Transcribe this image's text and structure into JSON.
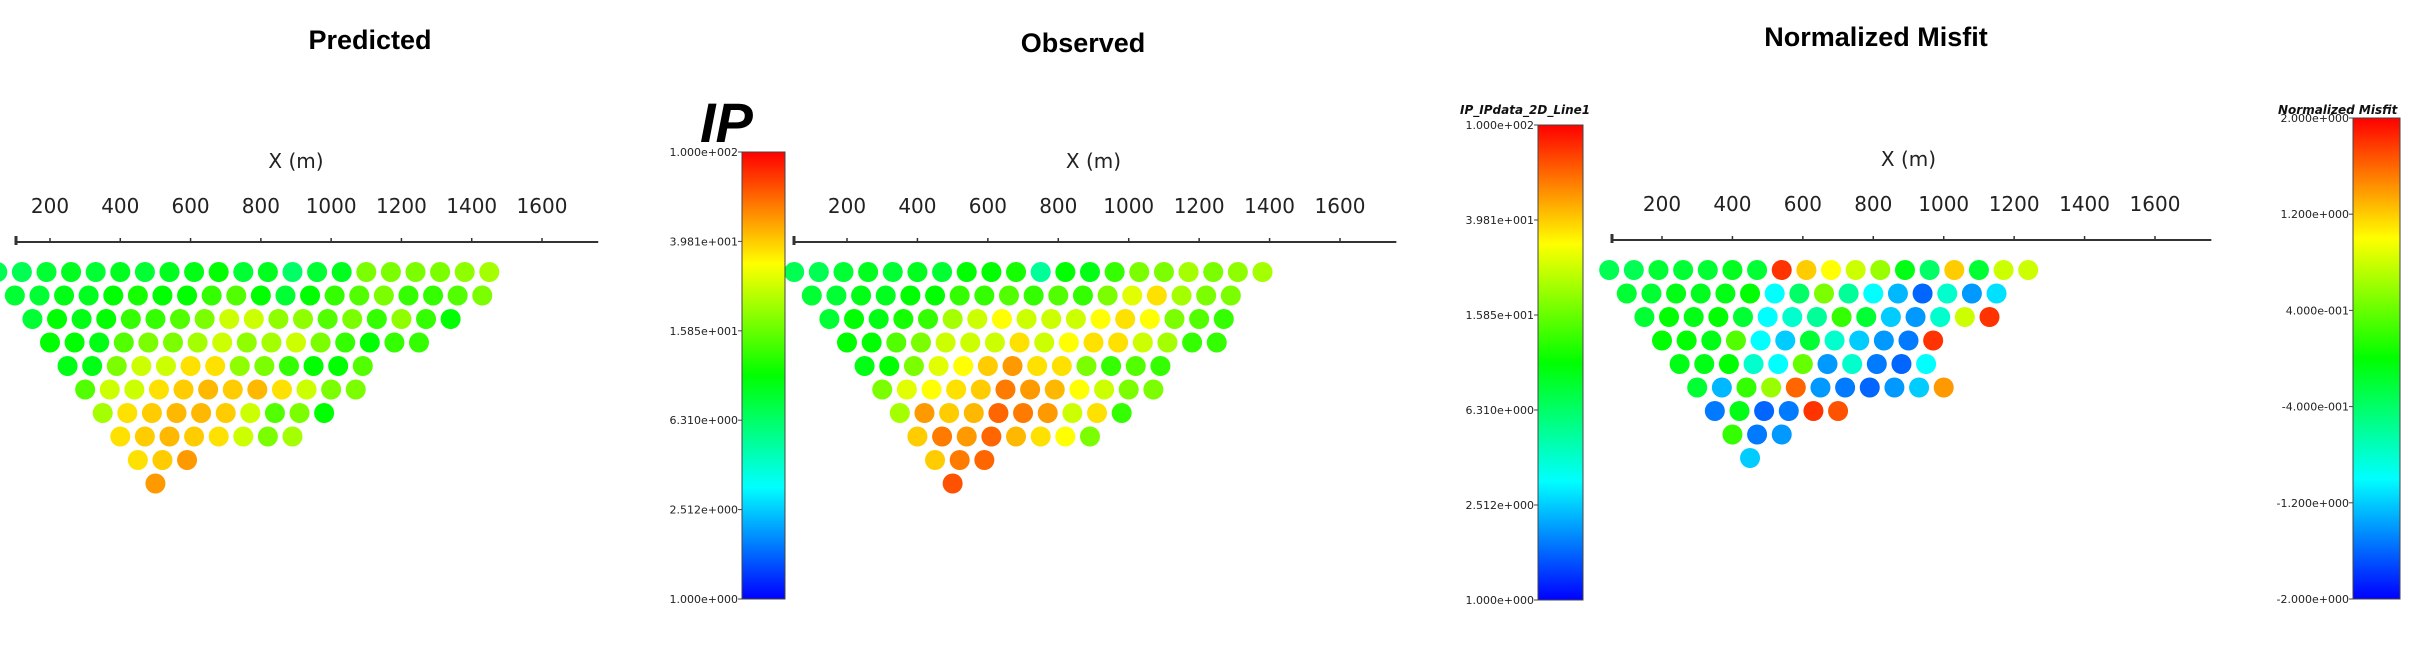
{
  "figure": {
    "ip_label": "IP"
  },
  "colormaps": [
    {
      "title": "",
      "ticks": [
        "1.000e+002",
        "3.981e+001",
        "1.585e+001",
        "6.310e+000",
        "2.512e+000",
        "1.000e+000"
      ]
    },
    {
      "title": "IP_IPdata_2D_Line1",
      "ticks": [
        "1.000e+002",
        "3.981e+001",
        "1.585e+001",
        "6.310e+000",
        "2.512e+000",
        "1.000e+000"
      ]
    },
    {
      "title": "Normalized Misfit",
      "ticks": [
        "2.000e+000",
        "1.200e+000",
        "4.000e-001",
        "-4.000e-001",
        "-1.200e+000",
        "-2.000e+000"
      ]
    }
  ],
  "chart_data": [
    {
      "type": "scatter",
      "title": "Predicted",
      "xlabel": "X (m)",
      "xticks": [
        200,
        400,
        600,
        800,
        1000,
        1200,
        1400,
        1600
      ],
      "colorbar": 0,
      "rows": [
        {
          "x0": 50,
          "v": [
            0.42,
            0.42,
            0.45,
            0.47,
            0.45,
            0.47,
            0.45,
            0.47,
            0.48,
            0.5,
            0.45,
            0.47,
            0.4,
            0.45,
            0.47,
            0.62,
            0.62,
            0.62,
            0.62,
            0.64,
            0.66
          ]
        },
        {
          "x0": 100,
          "v": [
            0.45,
            0.45,
            0.48,
            0.47,
            0.5,
            0.52,
            0.5,
            0.5,
            0.55,
            0.58,
            0.5,
            0.45,
            0.5,
            0.55,
            0.58,
            0.62,
            0.55,
            0.55,
            0.58,
            0.62
          ]
        },
        {
          "x0": 150,
          "v": [
            0.45,
            0.5,
            0.48,
            0.5,
            0.55,
            0.55,
            0.58,
            0.62,
            0.7,
            0.7,
            0.64,
            0.64,
            0.58,
            0.62,
            0.55,
            0.64,
            0.55,
            0.5
          ]
        },
        {
          "x0": 200,
          "v": [
            0.5,
            0.5,
            0.48,
            0.58,
            0.62,
            0.62,
            0.66,
            0.7,
            0.64,
            0.66,
            0.7,
            0.62,
            0.55,
            0.5,
            0.55,
            0.55
          ]
        },
        {
          "x0": 250,
          "v": [
            0.48,
            0.48,
            0.62,
            0.7,
            0.7,
            0.78,
            0.78,
            0.64,
            0.62,
            0.55,
            0.5,
            0.5,
            0.58
          ]
        },
        {
          "x0": 300,
          "v": [
            0.58,
            0.7,
            0.7,
            0.78,
            0.8,
            0.82,
            0.8,
            0.82,
            0.78,
            0.7,
            0.62,
            0.62
          ]
        },
        {
          "x0": 350,
          "v": [
            0.66,
            0.78,
            0.8,
            0.82,
            0.82,
            0.8,
            0.7,
            0.58,
            0.62,
            0.5
          ]
        },
        {
          "x0": 400,
          "v": [
            0.78,
            0.8,
            0.82,
            0.8,
            0.78,
            0.7,
            0.62,
            0.66
          ]
        },
        {
          "x0": 450,
          "v": [
            0.78,
            0.8,
            0.85
          ]
        },
        {
          "x0": 500,
          "v": [
            0.85
          ]
        }
      ]
    },
    {
      "type": "scatter",
      "title": "Observed",
      "xlabel": "X (m)",
      "xticks": [
        200,
        400,
        600,
        800,
        1000,
        1200,
        1400,
        1600
      ],
      "colorbar": 1,
      "rows": [
        {
          "x0": 50,
          "v": [
            0.42,
            0.42,
            0.45,
            0.47,
            0.45,
            0.47,
            0.45,
            0.5,
            0.5,
            0.52,
            0.35,
            0.5,
            0.48,
            0.55,
            0.62,
            0.62,
            0.66,
            0.62,
            0.64,
            0.66
          ]
        },
        {
          "x0": 100,
          "v": [
            0.45,
            0.45,
            0.48,
            0.47,
            0.5,
            0.5,
            0.55,
            0.55,
            0.58,
            0.55,
            0.58,
            0.55,
            0.62,
            0.72,
            0.78,
            0.66,
            0.62,
            0.62
          ]
        },
        {
          "x0": 150,
          "v": [
            0.45,
            0.5,
            0.48,
            0.52,
            0.55,
            0.66,
            0.7,
            0.75,
            0.7,
            0.7,
            0.7,
            0.75,
            0.78,
            0.75,
            0.62,
            0.58,
            0.55
          ]
        },
        {
          "x0": 200,
          "v": [
            0.5,
            0.5,
            0.58,
            0.62,
            0.7,
            0.7,
            0.7,
            0.78,
            0.7,
            0.75,
            0.78,
            0.78,
            0.7,
            0.66,
            0.55,
            0.55
          ]
        },
        {
          "x0": 250,
          "v": [
            0.48,
            0.5,
            0.62,
            0.72,
            0.75,
            0.8,
            0.85,
            0.78,
            0.78,
            0.62,
            0.55,
            0.58,
            0.55
          ]
        },
        {
          "x0": 300,
          "v": [
            0.62,
            0.72,
            0.75,
            0.78,
            0.8,
            0.88,
            0.85,
            0.82,
            0.75,
            0.7,
            0.62,
            0.62
          ]
        },
        {
          "x0": 350,
          "v": [
            0.66,
            0.85,
            0.8,
            0.82,
            0.9,
            0.88,
            0.85,
            0.7,
            0.78,
            0.55
          ]
        },
        {
          "x0": 400,
          "v": [
            0.8,
            0.88,
            0.85,
            0.9,
            0.82,
            0.78,
            0.75,
            0.62
          ]
        },
        {
          "x0": 450,
          "v": [
            0.8,
            0.88,
            0.9
          ]
        },
        {
          "x0": 500,
          "v": [
            0.92
          ]
        }
      ]
    },
    {
      "type": "scatter",
      "title": "Normalized Misfit",
      "xlabel": "X (m)",
      "xticks": [
        200,
        400,
        600,
        800,
        1000,
        1200,
        1400,
        1600
      ],
      "colorbar": 2,
      "rows": [
        {
          "x0": 50,
          "v": [
            0.42,
            0.42,
            0.45,
            0.45,
            0.45,
            0.47,
            0.45,
            0.95,
            0.8,
            0.75,
            0.7,
            0.65,
            0.48,
            0.4,
            0.8,
            0.45,
            0.7,
            0.7
          ]
        },
        {
          "x0": 100,
          "v": [
            0.45,
            0.45,
            0.48,
            0.47,
            0.48,
            0.5,
            0.25,
            0.4,
            0.62,
            0.35,
            0.25,
            0.18,
            0.1,
            0.3,
            0.15,
            0.22
          ]
        },
        {
          "x0": 150,
          "v": [
            0.45,
            0.5,
            0.48,
            0.5,
            0.45,
            0.25,
            0.3,
            0.35,
            0.55,
            0.45,
            0.2,
            0.15,
            0.3,
            0.7,
            0.95
          ]
        },
        {
          "x0": 200,
          "v": [
            0.5,
            0.5,
            0.48,
            0.58,
            0.25,
            0.2,
            0.45,
            0.3,
            0.2,
            0.15,
            0.12,
            0.95
          ]
        },
        {
          "x0": 250,
          "v": [
            0.48,
            0.48,
            0.5,
            0.3,
            0.25,
            0.6,
            0.15,
            0.3,
            0.12,
            0.1,
            0.25
          ]
        },
        {
          "x0": 300,
          "v": [
            0.45,
            0.18,
            0.55,
            0.65,
            0.9,
            0.15,
            0.12,
            0.1,
            0.15,
            0.2,
            0.85
          ]
        },
        {
          "x0": 350,
          "v": [
            0.12,
            0.48,
            0.1,
            0.12,
            0.95,
            0.92
          ]
        },
        {
          "x0": 400,
          "v": [
            0.55,
            0.12,
            0.15
          ]
        },
        {
          "x0": 450,
          "v": [
            0.2
          ]
        }
      ]
    }
  ]
}
